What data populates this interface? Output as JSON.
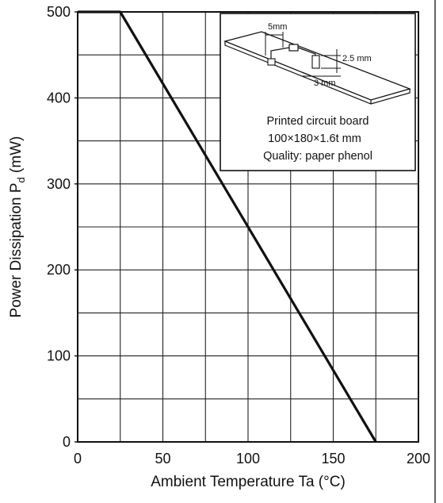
{
  "chart_data": {
    "type": "line",
    "xlabel": "Ambient Temperature Ta (°C)",
    "ylabel_main": "Power Dissipation P",
    "ylabel_sub": "d",
    "ylabel_unit": " (mW)",
    "xlim": [
      0,
      200
    ],
    "ylim": [
      0,
      500
    ],
    "x_ticks": [
      0,
      50,
      100,
      150,
      200
    ],
    "y_ticks": [
      0,
      100,
      200,
      300,
      400,
      500
    ],
    "x_tick_labels": [
      "0",
      "50",
      "100",
      "150",
      "200"
    ],
    "y_tick_labels": [
      "0",
      "100",
      "200",
      "300",
      "400",
      "500"
    ],
    "grid": true,
    "x_grid_step": 25,
    "y_grid_step": 50,
    "series": [
      {
        "x": [
          0,
          25,
          175
        ],
        "y": [
          500,
          500,
          0
        ],
        "color": "#111111"
      }
    ],
    "inset": {
      "dim_5mm": "5mm",
      "dim_2_5mm": "2.5 mm",
      "dim_3mm": "3 mm",
      "line1": "Printed circuit board",
      "line2": "100×180×1.6t mm",
      "line3": "Quality: paper phenol"
    }
  }
}
